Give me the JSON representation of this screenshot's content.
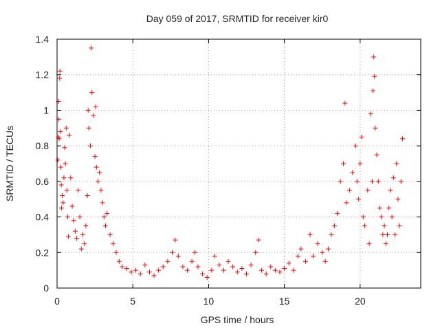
{
  "chart_data": {
    "type": "scatter",
    "title": "Day 059 of 2017, SRMTID for receiver kir0",
    "xlabel": "GPS time / hours",
    "ylabel": "SRMTID / TECUs",
    "xlim": [
      0,
      24
    ],
    "ylim": [
      0,
      1.4
    ],
    "xticks": [
      "0",
      "5",
      "10",
      "15",
      "20"
    ],
    "yticks": [
      "0",
      "0.2",
      "0.4",
      "0.6",
      "0.8",
      "1",
      "1.2",
      "1.4"
    ],
    "grid": true,
    "marker": "+",
    "color": "#ff0000",
    "series": [
      {
        "name": "SRMTID",
        "points": [
          [
            0.05,
            0.72
          ],
          [
            0.08,
            0.85
          ],
          [
            0.1,
            1.05
          ],
          [
            0.12,
            0.95
          ],
          [
            0.14,
            0.84
          ],
          [
            0.17,
            1.18
          ],
          [
            0.19,
            1.22
          ],
          [
            0.22,
            0.88
          ],
          [
            0.25,
            0.68
          ],
          [
            0.28,
            0.58
          ],
          [
            0.3,
            0.45
          ],
          [
            0.35,
            0.52
          ],
          [
            0.4,
            0.48
          ],
          [
            0.45,
            0.62
          ],
          [
            0.5,
            0.79
          ],
          [
            0.55,
            0.7
          ],
          [
            0.6,
            0.9
          ],
          [
            0.65,
            0.55
          ],
          [
            0.7,
            0.4
          ],
          [
            0.75,
            0.29
          ],
          [
            0.8,
            0.86
          ],
          [
            0.9,
            0.62
          ],
          [
            1.0,
            0.46
          ],
          [
            1.1,
            0.38
          ],
          [
            1.2,
            0.32
          ],
          [
            1.3,
            0.28
          ],
          [
            1.4,
            0.55
          ],
          [
            1.5,
            0.4
          ],
          [
            1.6,
            0.22
          ],
          [
            1.7,
            0.3
          ],
          [
            1.8,
            0.25
          ],
          [
            1.9,
            0.35
          ],
          [
            2.0,
            0.52
          ],
          [
            2.05,
            1.0
          ],
          [
            2.1,
            0.9
          ],
          [
            2.2,
            0.8
          ],
          [
            2.25,
            1.35
          ],
          [
            2.3,
            1.1
          ],
          [
            2.4,
            0.97
          ],
          [
            2.5,
            0.74
          ],
          [
            2.55,
            1.02
          ],
          [
            2.6,
            0.68
          ],
          [
            2.7,
            0.6
          ],
          [
            2.8,
            0.65
          ],
          [
            2.9,
            0.55
          ],
          [
            3.0,
            0.48
          ],
          [
            3.1,
            0.4
          ],
          [
            3.2,
            0.35
          ],
          [
            3.3,
            0.42
          ],
          [
            3.5,
            0.3
          ],
          [
            3.7,
            0.25
          ],
          [
            3.9,
            0.2
          ],
          [
            4.1,
            0.15
          ],
          [
            4.3,
            0.12
          ],
          [
            4.6,
            0.11
          ],
          [
            4.9,
            0.09
          ],
          [
            5.2,
            0.1
          ],
          [
            5.5,
            0.08
          ],
          [
            5.8,
            0.13
          ],
          [
            6.1,
            0.09
          ],
          [
            6.4,
            0.07
          ],
          [
            6.7,
            0.1
          ],
          [
            7.0,
            0.12
          ],
          [
            7.3,
            0.15
          ],
          [
            7.6,
            0.2
          ],
          [
            7.8,
            0.27
          ],
          [
            8.0,
            0.18
          ],
          [
            8.3,
            0.12
          ],
          [
            8.6,
            0.1
          ],
          [
            8.9,
            0.15
          ],
          [
            9.1,
            0.2
          ],
          [
            9.3,
            0.12
          ],
          [
            9.6,
            0.08
          ],
          [
            9.9,
            0.06
          ],
          [
            10.2,
            0.1
          ],
          [
            10.4,
            0.18
          ],
          [
            10.7,
            0.13
          ],
          [
            11.0,
            0.1
          ],
          [
            11.3,
            0.15
          ],
          [
            11.6,
            0.12
          ],
          [
            11.9,
            0.09
          ],
          [
            12.2,
            0.11
          ],
          [
            12.5,
            0.08
          ],
          [
            12.8,
            0.13
          ],
          [
            13.1,
            0.2
          ],
          [
            13.3,
            0.27
          ],
          [
            13.5,
            0.1
          ],
          [
            13.8,
            0.08
          ],
          [
            14.1,
            0.12
          ],
          [
            14.4,
            0.1
          ],
          [
            14.7,
            0.09
          ],
          [
            15.0,
            0.11
          ],
          [
            15.3,
            0.14
          ],
          [
            15.6,
            0.1
          ],
          [
            15.9,
            0.18
          ],
          [
            16.1,
            0.22
          ],
          [
            16.4,
            0.15
          ],
          [
            16.7,
            0.3
          ],
          [
            16.9,
            0.18
          ],
          [
            17.2,
            0.25
          ],
          [
            17.5,
            0.2
          ],
          [
            17.7,
            0.15
          ],
          [
            17.9,
            0.22
          ],
          [
            18.1,
            0.3
          ],
          [
            18.3,
            0.35
          ],
          [
            18.5,
            0.42
          ],
          [
            18.7,
            0.6
          ],
          [
            18.9,
            0.7
          ],
          [
            19.0,
            1.04
          ],
          [
            19.1,
            0.48
          ],
          [
            19.3,
            0.55
          ],
          [
            19.5,
            0.65
          ],
          [
            19.7,
            0.8
          ],
          [
            19.8,
            0.6
          ],
          [
            19.9,
            0.5
          ],
          [
            20.0,
            0.7
          ],
          [
            20.1,
            0.85
          ],
          [
            20.2,
            0.4
          ],
          [
            20.3,
            0.35
          ],
          [
            20.5,
            0.55
          ],
          [
            20.6,
            0.25
          ],
          [
            20.7,
            0.98
          ],
          [
            20.8,
            0.6
          ],
          [
            20.85,
            1.11
          ],
          [
            20.9,
            1.3
          ],
          [
            20.95,
            1.19
          ],
          [
            21.0,
            0.9
          ],
          [
            21.1,
            0.75
          ],
          [
            21.2,
            0.6
          ],
          [
            21.3,
            0.45
          ],
          [
            21.4,
            0.4
          ],
          [
            21.5,
            0.3
          ],
          [
            21.6,
            0.35
          ],
          [
            21.7,
            0.25
          ],
          [
            21.8,
            0.3
          ],
          [
            21.9,
            0.45
          ],
          [
            22.0,
            0.55
          ],
          [
            22.1,
            0.4
          ],
          [
            22.2,
            0.62
          ],
          [
            22.3,
            0.3
          ],
          [
            22.4,
            0.7
          ],
          [
            22.5,
            0.5
          ],
          [
            22.6,
            0.35
          ],
          [
            22.7,
            0.6
          ],
          [
            22.8,
            0.84
          ]
        ]
      }
    ]
  }
}
